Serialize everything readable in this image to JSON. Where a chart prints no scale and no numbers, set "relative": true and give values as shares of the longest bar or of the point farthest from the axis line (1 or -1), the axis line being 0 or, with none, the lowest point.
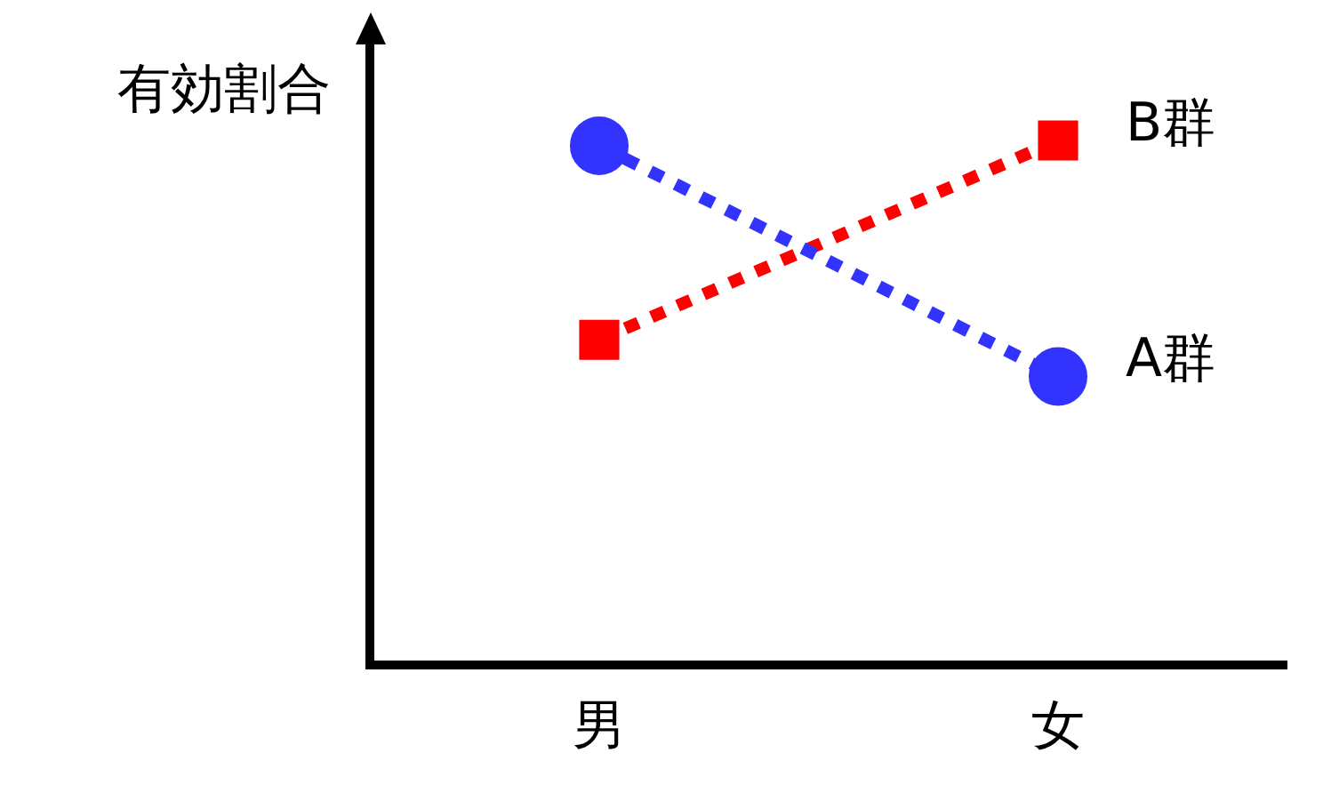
{
  "chart_data": {
    "type": "line",
    "ylabel": "有効割合",
    "categories": [
      "男",
      "女"
    ],
    "relative": true,
    "legend": false,
    "grid": false,
    "line_style": "dotted",
    "series": [
      {
        "name": "A群",
        "color": "#3333ff",
        "marker": "circle",
        "values": [
          0.99,
          0.55
        ]
      },
      {
        "name": "B群",
        "color": "#ff0000",
        "marker": "square",
        "values": [
          0.62,
          1
        ]
      }
    ]
  }
}
